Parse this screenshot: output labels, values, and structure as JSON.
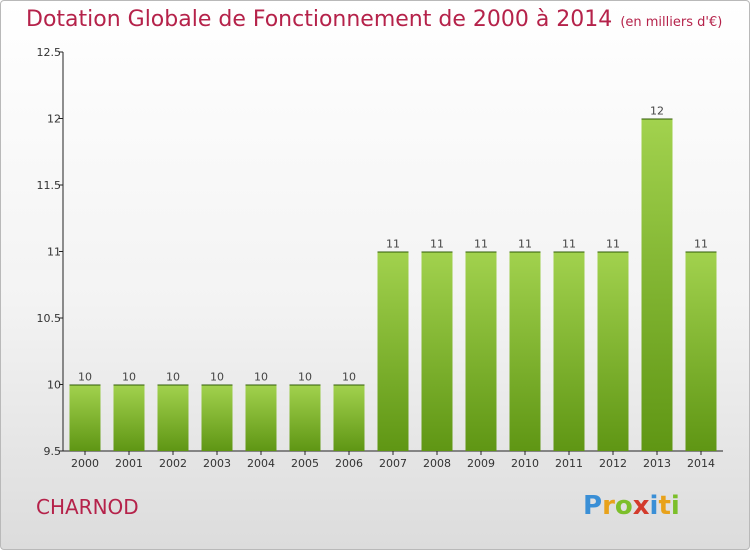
{
  "header": {
    "title": "Dotation Globale de Fonctionnement de 2000 à 2014",
    "subtitle": "(en milliers d'€)"
  },
  "footer": {
    "town": "CHARNOD",
    "logo_text": "Proxiti"
  },
  "colors": {
    "title": "#b5224a",
    "bar_top": "#a2d24e",
    "bar_bottom": "#5f9614"
  },
  "chart_data": {
    "type": "bar",
    "title": "Dotation Globale de Fonctionnement de 2000 à 2014",
    "subtitle": "(en milliers d'€)",
    "xlabel": "",
    "ylabel": "",
    "categories": [
      "2000",
      "2001",
      "2002",
      "2003",
      "2004",
      "2005",
      "2006",
      "2007",
      "2008",
      "2009",
      "2010",
      "2011",
      "2012",
      "2013",
      "2014"
    ],
    "values": [
      10,
      10,
      10,
      10,
      10,
      10,
      10,
      11,
      11,
      11,
      11,
      11,
      11,
      12,
      11
    ],
    "data_labels": [
      "10",
      "10",
      "10",
      "10",
      "10",
      "10",
      "10",
      "11",
      "11",
      "11",
      "11",
      "11",
      "11",
      "12",
      "11"
    ],
    "ylim": [
      9.5,
      12.5
    ],
    "yticks": [
      9.5,
      10,
      10.5,
      11,
      11.5,
      12,
      12.5
    ],
    "ytick_labels": [
      "9.5",
      "10",
      "10.5",
      "11",
      "11.5",
      "12",
      "12.5"
    ],
    "grid": false,
    "legend": "none"
  }
}
